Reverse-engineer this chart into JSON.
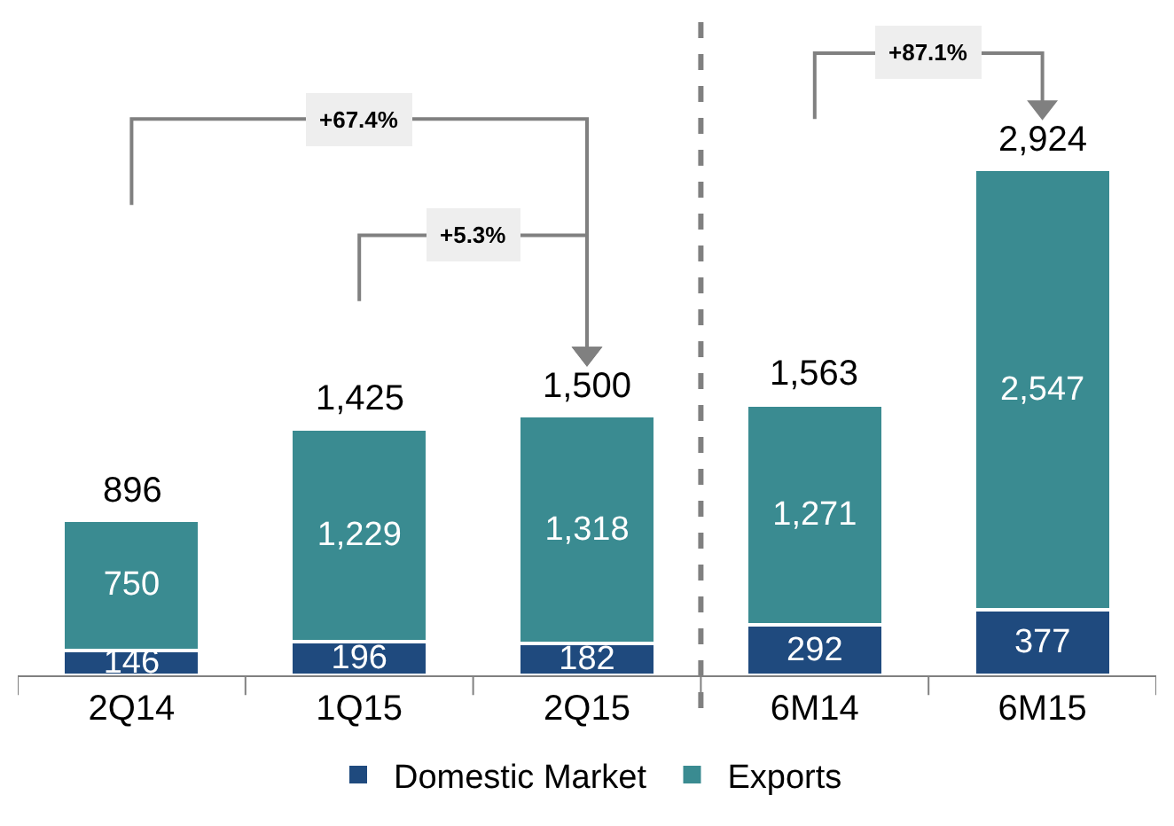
{
  "chart_data": {
    "type": "bar",
    "stacked": true,
    "categories": [
      "2Q14",
      "1Q15",
      "2Q15",
      "6M14",
      "6M15"
    ],
    "series": [
      {
        "name": "Domestic Market",
        "color": "#1f4a7e",
        "values": [
          146,
          196,
          182,
          292,
          377
        ],
        "value_labels": [
          "146",
          "196",
          "182",
          "292",
          "377"
        ]
      },
      {
        "name": "Exports",
        "color": "#3a8b91",
        "values": [
          750,
          1229,
          1318,
          1271,
          2547
        ],
        "value_labels": [
          "750",
          "1,229",
          "1,318",
          "1,271",
          "2,547"
        ]
      }
    ],
    "totals": [
      "896",
      "1,425",
      "1,500",
      "1,563",
      "2,924"
    ],
    "legend": "bottom",
    "grid": false,
    "annotations": [
      "+67.4%",
      "+5.3%",
      "+87.1%"
    ]
  }
}
